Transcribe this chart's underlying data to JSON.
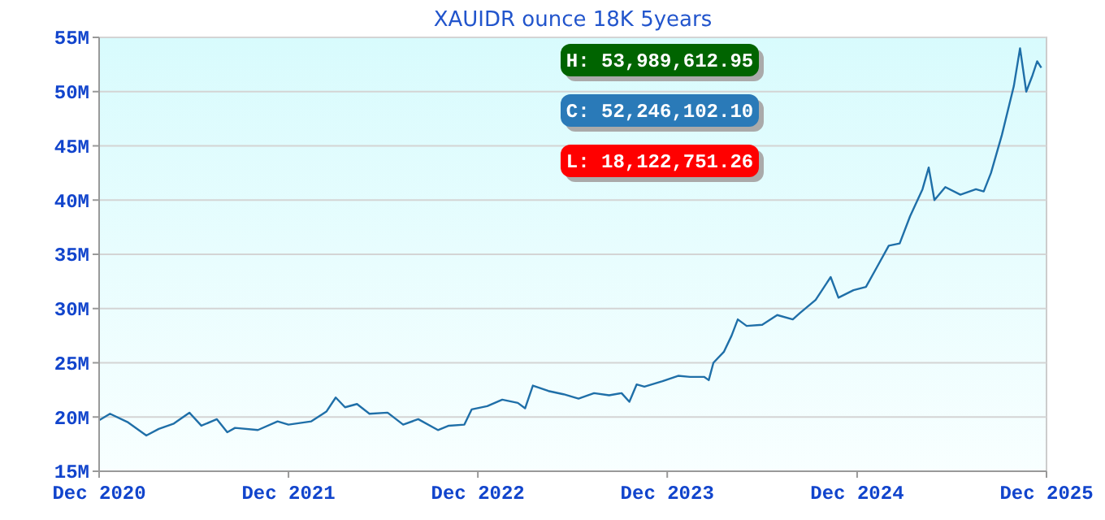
{
  "chart_data": {
    "type": "line",
    "title": "XAUIDR ounce 18K 5years",
    "x": [
      "2020-12-01",
      "2020-12-22",
      "2021-01-26",
      "2021-03-02",
      "2021-03-26",
      "2021-04-24",
      "2021-05-24",
      "2021-06-16",
      "2021-07-16",
      "2021-08-05",
      "2021-08-20",
      "2021-10-03",
      "2021-11-10",
      "2021-12-01",
      "2022-01-14",
      "2022-02-12",
      "2022-03-02",
      "2022-03-20",
      "2022-04-12",
      "2022-05-06",
      "2022-06-10",
      "2022-07-10",
      "2022-08-08",
      "2022-09-15",
      "2022-10-06",
      "2022-11-05",
      "2022-11-19",
      "2022-12-19",
      "2023-01-17",
      "2023-02-16",
      "2023-03-02",
      "2023-03-17",
      "2023-04-16",
      "2023-05-15",
      "2023-06-13",
      "2023-07-13",
      "2023-08-11",
      "2023-09-04",
      "2023-09-19",
      "2023-10-03",
      "2023-10-18",
      "2023-11-22",
      "2023-12-22",
      "2024-01-14",
      "2024-02-10",
      "2024-02-19",
      "2024-02-28",
      "2024-03-19",
      "2024-04-03",
      "2024-04-15",
      "2024-05-02",
      "2024-06-01",
      "2024-06-30",
      "2024-07-30",
      "2024-08-13",
      "2024-09-12",
      "2024-10-11",
      "2024-10-26",
      "2024-11-24",
      "2024-12-18",
      "2025-01-08",
      "2025-01-31",
      "2025-02-21",
      "2025-03-13",
      "2025-04-06",
      "2025-04-18",
      "2025-04-29",
      "2025-05-20",
      "2025-06-18",
      "2025-07-18",
      "2025-08-02",
      "2025-08-16",
      "2025-09-06",
      "2025-09-29",
      "2025-10-11",
      "2025-10-23",
      "2025-11-04",
      "2025-11-13",
      "2025-11-21"
    ],
    "series": [
      {
        "color": "#1f6fa8",
        "values": [
          19.7,
          20.3,
          19.5,
          18.3,
          18.9,
          19.4,
          20.4,
          19.2,
          19.8,
          18.6,
          19.0,
          18.8,
          19.6,
          19.3,
          19.6,
          20.5,
          21.8,
          20.9,
          21.2,
          20.3,
          20.4,
          19.3,
          19.8,
          18.8,
          19.2,
          19.3,
          20.7,
          21.0,
          21.6,
          21.3,
          20.8,
          22.9,
          22.4,
          22.1,
          21.7,
          22.2,
          22.0,
          22.2,
          21.4,
          23.0,
          22.8,
          23.3,
          23.8,
          23.7,
          23.7,
          23.4,
          25.0,
          26.0,
          27.5,
          29.0,
          28.4,
          28.5,
          29.4,
          29.0,
          29.6,
          30.8,
          32.9,
          31.0,
          31.7,
          32.0,
          33.8,
          35.8,
          36.0,
          38.5,
          41.0,
          43.0,
          40.0,
          41.2,
          40.5,
          41.0,
          40.8,
          42.5,
          46.0,
          50.5,
          54.0,
          50.0,
          51.5,
          52.8,
          52.2
        ]
      }
    ],
    "xlim": [
      "2020-12-01",
      "2025-12-01"
    ],
    "xticks": [
      {
        "value": "2020-12-01",
        "label": "Dec 2020"
      },
      {
        "value": "2021-12-01",
        "label": "Dec 2021"
      },
      {
        "value": "2022-12-01",
        "label": "Dec 2022"
      },
      {
        "value": "2023-12-01",
        "label": "Dec 2023"
      },
      {
        "value": "2024-12-01",
        "label": "Dec 2024"
      },
      {
        "value": "2025-12-01",
        "label": "Dec 2025"
      }
    ],
    "ylim": [
      15,
      55
    ],
    "yticks": [
      {
        "value": 15,
        "label": "15M"
      },
      {
        "value": 20,
        "label": "20M"
      },
      {
        "value": 25,
        "label": "25M"
      },
      {
        "value": 30,
        "label": "30M"
      },
      {
        "value": 35,
        "label": "35M"
      },
      {
        "value": 40,
        "label": "40M"
      },
      {
        "value": 45,
        "label": "45M"
      },
      {
        "value": 50,
        "label": "50M"
      },
      {
        "value": 55,
        "label": "55M"
      }
    ],
    "grid": "y",
    "marker": "none",
    "line_style": "solid",
    "annotations": [
      "H: 53,989,612.95",
      "C: 52,246,102.10",
      "L: 18,122,751.26"
    ]
  }
}
